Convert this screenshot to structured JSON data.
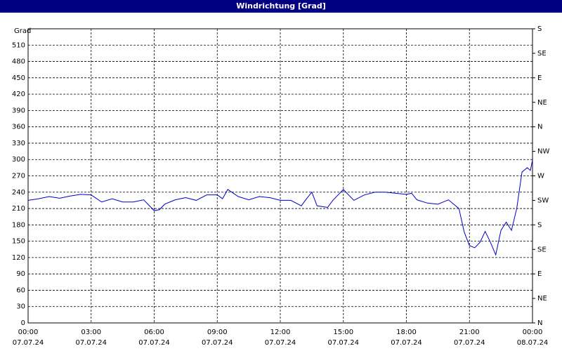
{
  "chart_data": {
    "type": "line",
    "title": "Windrichtung [Grad]",
    "y_label": "Grad",
    "x": [
      0,
      0.5,
      1,
      1.5,
      2,
      2.5,
      3,
      3.5,
      4,
      4.5,
      5,
      5.5,
      6,
      6.25,
      6.5,
      7,
      7.5,
      8,
      8.5,
      9,
      9.25,
      9.5,
      10,
      10.5,
      11,
      11.5,
      12,
      12.5,
      13,
      13.25,
      13.5,
      13.75,
      14.25,
      14.5,
      15,
      15.5,
      16,
      16.5,
      17,
      17.5,
      18,
      18.25,
      18.5,
      19,
      19.5,
      20,
      20.5,
      20.75,
      21,
      21.25,
      21.5,
      21.75,
      22,
      22.25,
      22.5,
      22.75,
      23,
      23.25,
      23.5,
      23.75,
      23.9,
      24
    ],
    "series": [
      {
        "name": "Windrichtung",
        "color": "#0000cc",
        "values": [
          225,
          228,
          232,
          229,
          233,
          236,
          235,
          222,
          228,
          222,
          222,
          226,
          206,
          208,
          218,
          226,
          230,
          225,
          235,
          235,
          228,
          245,
          232,
          226,
          232,
          230,
          225,
          225,
          215,
          228,
          240,
          215,
          212,
          225,
          245,
          225,
          235,
          240,
          240,
          238,
          236,
          238,
          226,
          220,
          218,
          226,
          210,
          167,
          142,
          138,
          148,
          168,
          148,
          125,
          170,
          185,
          170,
          210,
          277,
          285,
          280,
          299
        ]
      }
    ],
    "xlim": [
      0,
      24
    ],
    "xticks": [
      {
        "value": 0,
        "label": "00:00",
        "sublabel": "07.07.24"
      },
      {
        "value": 3,
        "label": "03:00",
        "sublabel": "07.07.24"
      },
      {
        "value": 6,
        "label": "06:00",
        "sublabel": "07.07.24"
      },
      {
        "value": 9,
        "label": "09:00",
        "sublabel": "07.07.24"
      },
      {
        "value": 12,
        "label": "12:00",
        "sublabel": "07.07.24"
      },
      {
        "value": 15,
        "label": "15:00",
        "sublabel": "07.07.24"
      },
      {
        "value": 18,
        "label": "18:00",
        "sublabel": "07.07.24"
      },
      {
        "value": 21,
        "label": "21:00",
        "sublabel": "07.07.24"
      },
      {
        "value": 24,
        "label": "00:00",
        "sublabel": "08.07.24"
      }
    ],
    "ylim": [
      0,
      540
    ],
    "yticks": [
      0,
      30,
      60,
      90,
      120,
      150,
      180,
      210,
      240,
      270,
      300,
      330,
      360,
      390,
      420,
      450,
      480,
      510
    ],
    "y2lim": [
      0,
      540
    ],
    "y2ticks": [
      {
        "value": 0,
        "label": "N"
      },
      {
        "value": 45,
        "label": "NE"
      },
      {
        "value": 90,
        "label": "E"
      },
      {
        "value": 135,
        "label": "SE"
      },
      {
        "value": 180,
        "label": "S"
      },
      {
        "value": 225,
        "label": "SW"
      },
      {
        "value": 270,
        "label": "W"
      },
      {
        "value": 315,
        "label": "NW"
      },
      {
        "value": 360,
        "label": "N"
      },
      {
        "value": 405,
        "label": "NE"
      },
      {
        "value": 450,
        "label": "E"
      },
      {
        "value": 495,
        "label": "SE"
      },
      {
        "value": 540,
        "label": "S"
      }
    ],
    "grid": true
  }
}
